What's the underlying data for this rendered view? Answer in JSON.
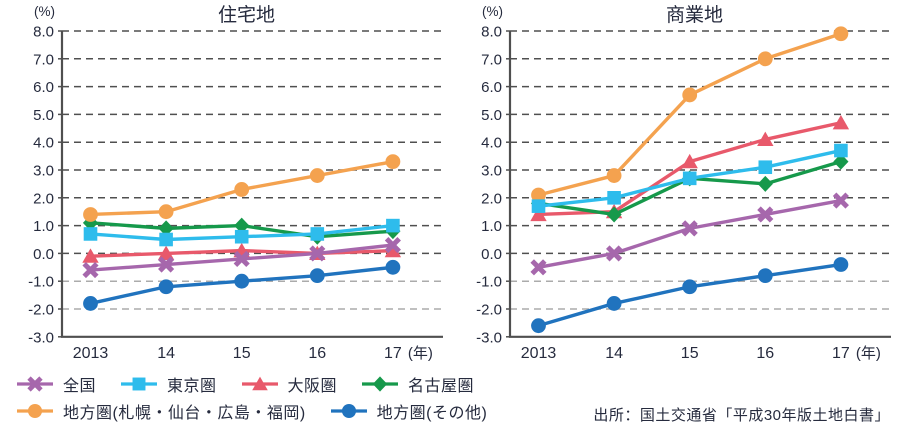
{
  "chart_data": [
    {
      "type": "line",
      "title": "住宅地",
      "y_unit": "(%)",
      "x_suffix": "(年)",
      "categories": [
        "2013",
        "14",
        "15",
        "16",
        "17"
      ],
      "ylim": [
        -3.0,
        8.0
      ],
      "ytick_step": 1.0,
      "grid": "dashed-horizontal",
      "legend_position": "bottom",
      "series": [
        {
          "name": "全国",
          "marker": "x",
          "color": "#A667AC",
          "values": [
            -0.6,
            -0.4,
            -0.2,
            0.0,
            0.3
          ]
        },
        {
          "name": "東京圏",
          "marker": "square",
          "color": "#2EBCEC",
          "values": [
            0.7,
            0.5,
            0.6,
            0.7,
            1.0
          ]
        },
        {
          "name": "大阪圏",
          "marker": "triangle",
          "color": "#E8596B",
          "values": [
            -0.1,
            0.0,
            0.1,
            0.0,
            0.1
          ]
        },
        {
          "name": "名古屋圏",
          "marker": "diamond",
          "color": "#16994B",
          "values": [
            1.1,
            0.9,
            1.0,
            0.6,
            0.8
          ]
        },
        {
          "name": "地方圏(札幌・仙台・広島・福岡)",
          "marker": "circle",
          "color": "#F4A24F",
          "values": [
            1.4,
            1.5,
            2.3,
            2.8,
            3.3
          ]
        },
        {
          "name": "地方圏(その他)",
          "marker": "circle",
          "color": "#2073BE",
          "values": [
            -1.8,
            -1.2,
            -1.0,
            -0.8,
            -0.5
          ]
        }
      ]
    },
    {
      "type": "line",
      "title": "商業地",
      "y_unit": "(%)",
      "x_suffix": "(年)",
      "categories": [
        "2013",
        "14",
        "15",
        "16",
        "17"
      ],
      "ylim": [
        -3.0,
        8.0
      ],
      "ytick_step": 1.0,
      "grid": "dashed-horizontal",
      "legend_position": "bottom",
      "series": [
        {
          "name": "全国",
          "marker": "x",
          "color": "#A667AC",
          "values": [
            -0.5,
            0.0,
            0.9,
            1.4,
            1.9
          ]
        },
        {
          "name": "東京圏",
          "marker": "square",
          "color": "#2EBCEC",
          "values": [
            1.7,
            2.0,
            2.7,
            3.1,
            3.7
          ]
        },
        {
          "name": "大阪圏",
          "marker": "triangle",
          "color": "#E8596B",
          "values": [
            1.4,
            1.5,
            3.3,
            4.1,
            4.7
          ]
        },
        {
          "name": "名古屋圏",
          "marker": "diamond",
          "color": "#16994B",
          "values": [
            1.8,
            1.4,
            2.7,
            2.5,
            3.3
          ]
        },
        {
          "name": "地方圏(札幌・仙台・広島・福岡)",
          "marker": "circle",
          "color": "#F4A24F",
          "values": [
            2.1,
            2.8,
            5.7,
            7.0,
            7.9
          ]
        },
        {
          "name": "地方圏(その他)",
          "marker": "circle",
          "color": "#2073BE",
          "values": [
            -2.6,
            -1.8,
            -1.2,
            -0.8,
            -0.4
          ]
        }
      ]
    }
  ],
  "legend": {
    "rows": [
      [
        0,
        1,
        2,
        3
      ],
      [
        4,
        5
      ]
    ]
  },
  "source": "出所：国土交通省「平成30年版土地白書」"
}
